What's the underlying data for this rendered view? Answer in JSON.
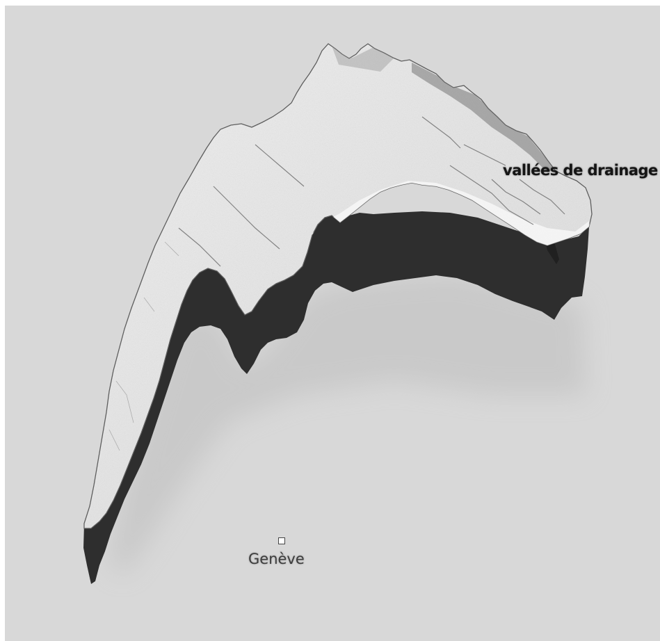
{
  "map": {
    "style": "grayscale shaded relief, extruded plateau",
    "colors": {
      "background": "#d8d8d8",
      "plateau_surface": "#e6e6e6",
      "shadow_wall": "#2f2f2f"
    },
    "labels": {
      "feature": "vallées de drainage",
      "city": "Genève"
    },
    "markers": [
      {
        "name": "Genève",
        "symbol": "white-square"
      }
    ]
  }
}
